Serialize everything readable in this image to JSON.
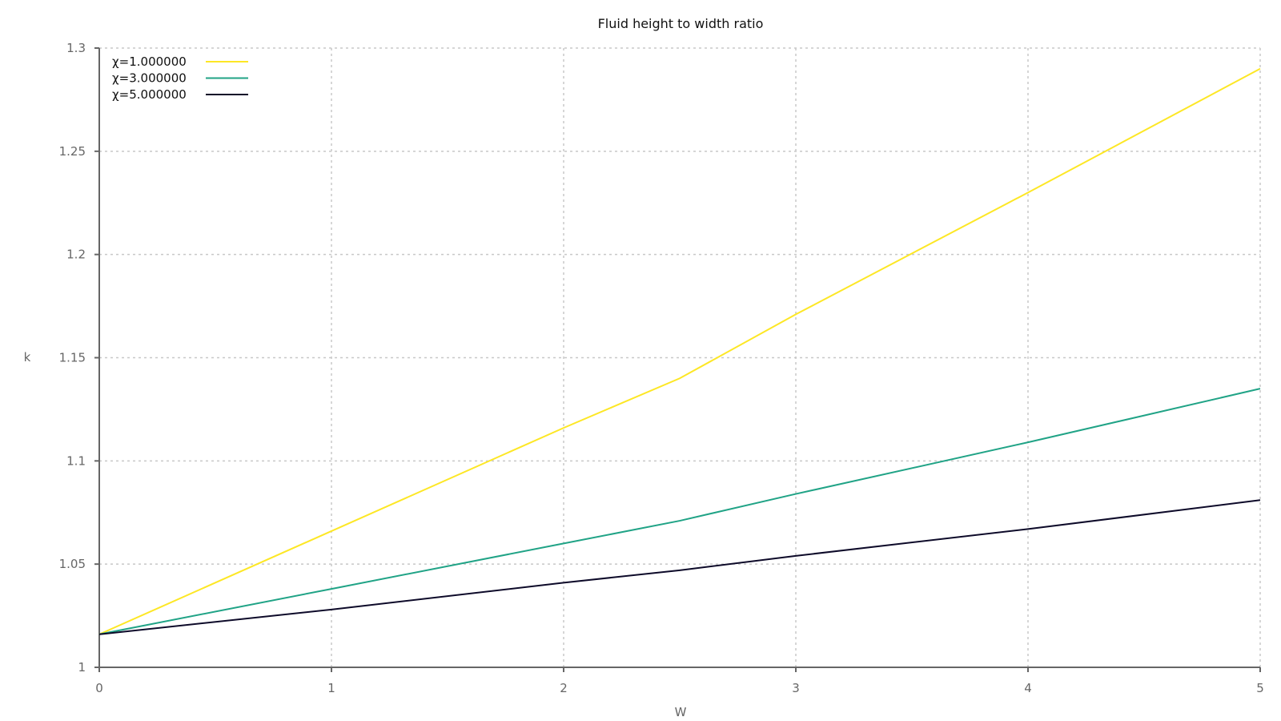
{
  "chart_data": {
    "type": "line",
    "title": "Fluid height to width ratio",
    "xlabel": "W",
    "ylabel": "k",
    "xlim": [
      0,
      5
    ],
    "ylim": [
      1,
      1.3
    ],
    "x_ticks": [
      "0",
      "1",
      "2",
      "3",
      "4",
      "5"
    ],
    "y_ticks": [
      "1",
      "1.05",
      "1.1",
      "1.15",
      "1.2",
      "1.25",
      "1.3"
    ],
    "grid": true,
    "legend_position": "top-left",
    "x": [
      0,
      1,
      2,
      2.5,
      3,
      4,
      5
    ],
    "series": [
      {
        "name": "χ=1.000000",
        "color": "#fde725",
        "values": [
          1.016,
          1.066,
          1.116,
          1.14,
          1.171,
          1.23,
          1.29
        ]
      },
      {
        "name": "χ=3.000000",
        "color": "#20a386",
        "values": [
          1.016,
          1.038,
          1.06,
          1.071,
          1.084,
          1.109,
          1.135
        ]
      },
      {
        "name": "χ=5.000000",
        "color": "#0d0a29",
        "values": [
          1.016,
          1.028,
          1.041,
          1.047,
          1.054,
          1.067,
          1.081
        ]
      }
    ]
  }
}
